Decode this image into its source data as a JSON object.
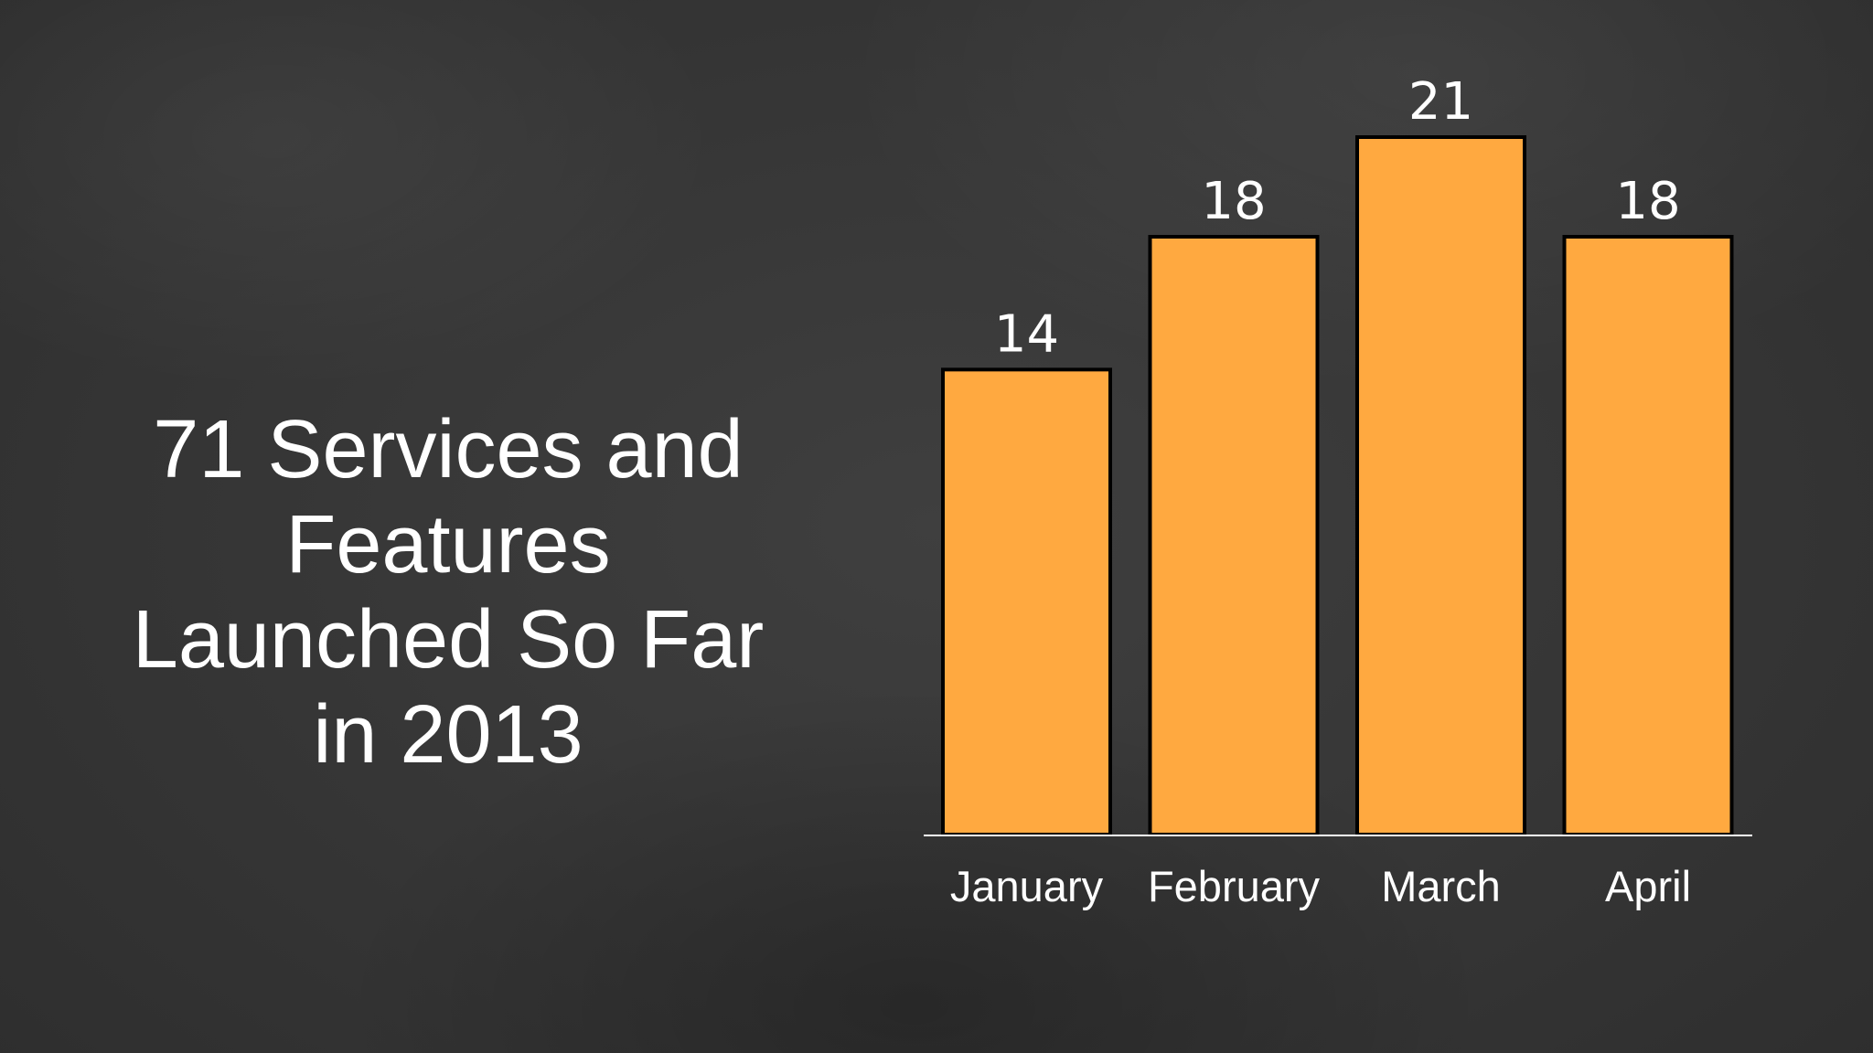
{
  "slide": {
    "headline": "71 Services and\nFeatures\nLaunched So Far\nin 2013"
  },
  "colors": {
    "bar_fill": "#FFA940",
    "bar_stroke": "#000000",
    "axis": "#ffffff",
    "text": "#ffffff"
  },
  "chart_data": {
    "type": "bar",
    "categories": [
      "January",
      "February",
      "March",
      "April"
    ],
    "values": [
      14,
      18,
      21,
      18
    ],
    "data_labels": [
      "14",
      "18",
      "21",
      "18"
    ],
    "title": "",
    "xlabel": "",
    "ylabel": "",
    "ylim": [
      0,
      21
    ],
    "grid": false,
    "legend": "none"
  }
}
